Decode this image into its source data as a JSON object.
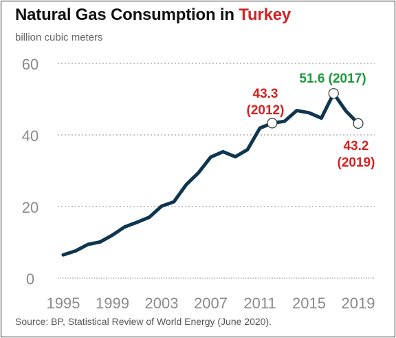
{
  "header": {
    "title_main": "Natural Gas Consumption in ",
    "title_accent": "Turkey",
    "subtitle": "billion cubic meters"
  },
  "footer": {
    "source": "Source: BP, Statistical Review of World Energy (June 2020)."
  },
  "colors": {
    "line": "#0f3550",
    "accent_red": "#d62020",
    "accent_green": "#1a9a3a",
    "grid": "#888888",
    "tick_text": "#8a8a8a"
  },
  "chart_data": {
    "type": "line",
    "title": "Natural Gas Consumption in Turkey",
    "ylabel": "billion cubic meters",
    "xlim": [
      1995,
      2019
    ],
    "ylim": [
      0,
      60
    ],
    "yticks": [
      0,
      20,
      40,
      60
    ],
    "xticks": [
      1995,
      1999,
      2003,
      2007,
      2011,
      2015,
      2019
    ],
    "grid": "horizontal dashed",
    "series": [
      {
        "x": [
          1995,
          1996,
          1997,
          1998,
          1999,
          2000,
          2001,
          2002,
          2003,
          2004,
          2005,
          2006,
          2007,
          2008,
          2009,
          2010,
          2011,
          2012,
          2013,
          2014,
          2015,
          2016,
          2017,
          2018,
          2019
        ],
        "values": [
          6.5,
          7.6,
          9.4,
          10.1,
          12.0,
          14.3,
          15.6,
          17.0,
          20.1,
          21.3,
          26.1,
          29.4,
          33.8,
          35.3,
          33.9,
          35.9,
          41.9,
          43.3,
          43.8,
          46.8,
          46.2,
          44.7,
          51.6,
          46.7,
          43.2
        ]
      }
    ],
    "annotations": [
      {
        "x": 2012,
        "y": 43.3,
        "line1": "43.3",
        "line2": "(2012)",
        "color": "red"
      },
      {
        "x": 2017,
        "y": 51.6,
        "line1": "51.6 (2017)",
        "line2": "",
        "color": "green"
      },
      {
        "x": 2019,
        "y": 43.2,
        "line1": "43.2",
        "line2": "(2019)",
        "color": "red"
      }
    ]
  }
}
